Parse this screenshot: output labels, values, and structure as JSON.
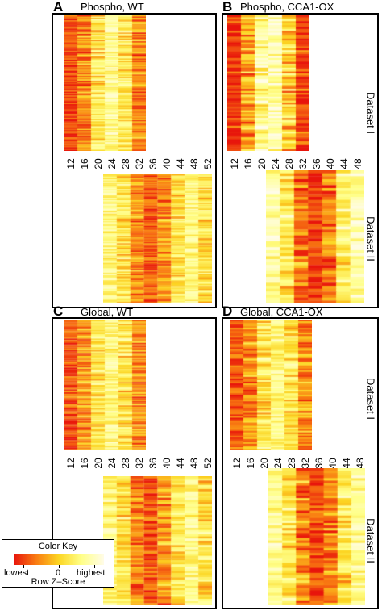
{
  "panels": {
    "A": {
      "letter": "A",
      "title": "Phospho, WT"
    },
    "B": {
      "letter": "B",
      "title": "Phospho, CCA1-OX"
    },
    "C": {
      "letter": "C",
      "title": "Global, WT"
    },
    "D": {
      "letter": "D",
      "title": "Global, CCA1-OX"
    }
  },
  "timepoints": [
    "12",
    "16",
    "20",
    "24",
    "28",
    "32",
    "36",
    "40",
    "44",
    "48",
    "52"
  ],
  "timepoints_ox": [
    "12",
    "16",
    "20",
    "24",
    "28",
    "32",
    "36",
    "40",
    "44",
    "48"
  ],
  "dataset_labels": {
    "one": "Dataset I",
    "two": "Dataset II"
  },
  "color_key": {
    "title": "Color Key",
    "low": "lowest",
    "mid": "0",
    "high": "highest",
    "subtitle": "Row Z–Score",
    "colors": [
      "#e8150c",
      "#f97c12",
      "#fcd623",
      "#ffff88",
      "#fffce8"
    ]
  }
}
